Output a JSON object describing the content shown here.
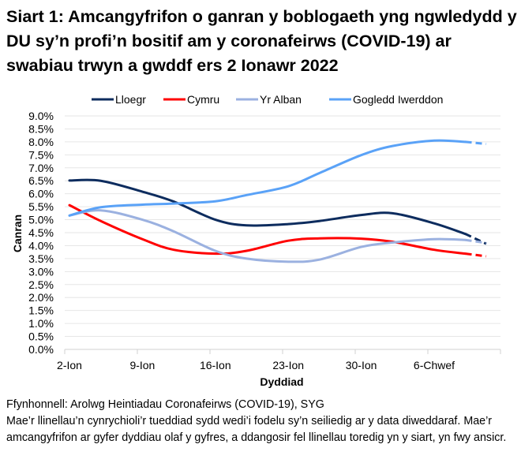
{
  "chart_data": {
    "type": "line",
    "title": "Siart 1: Amcangyfrifon o ganran y boblogaeth yng ngwledydd y DU sy’n profi’n bositif am y coronafeirws (COVID-19) ar swabiau trwyn a gwddf ers 2 Ionawr 2022",
    "xlabel": "Dyddiad",
    "ylabel": "Canran",
    "ylim": [
      0,
      9
    ],
    "y_ticks": [
      "0.0%",
      "0.5%",
      "1.0%",
      "1.5%",
      "2.0%",
      "2.5%",
      "3.0%",
      "3.5%",
      "4.0%",
      "4.5%",
      "5.0%",
      "5.5%",
      "6.0%",
      "6.5%",
      "7.0%",
      "7.5%",
      "8.0%",
      "8.5%",
      "9.0%"
    ],
    "x_tick_labels": [
      "2-Ion",
      "9-Ion",
      "16-Ion",
      "23-Ion",
      "30-Ion",
      "6-Chwef"
    ],
    "x_tick_dates": [
      "2022-01-02",
      "2022-01-09",
      "2022-01-16",
      "2022-01-23",
      "2022-01-30",
      "2022-02-06"
    ],
    "grid": true,
    "legend": "top",
    "x": [
      "2022-01-02",
      "2022-01-05",
      "2022-01-09",
      "2022-01-12",
      "2022-01-16",
      "2022-01-19",
      "2022-01-23",
      "2022-01-26",
      "2022-01-30",
      "2022-02-02",
      "2022-02-06",
      "2022-02-09",
      "2022-02-11"
    ],
    "dashed_from": "2022-02-09",
    "series": [
      {
        "name": "Lloegr",
        "color": "#0d2c5e",
        "values": [
          6.51,
          6.5,
          6.08,
          5.7,
          5.0,
          4.78,
          4.83,
          4.95,
          5.18,
          5.25,
          4.86,
          4.45,
          4.07
        ]
      },
      {
        "name": "Cymru",
        "color": "#ff0000",
        "values": [
          5.56,
          4.95,
          4.25,
          3.84,
          3.69,
          3.8,
          4.19,
          4.28,
          4.27,
          4.15,
          3.84,
          3.69,
          3.59
        ]
      },
      {
        "name": "Yr Alban",
        "color": "#9bb1e0",
        "values": [
          5.16,
          5.36,
          5.0,
          4.55,
          3.8,
          3.5,
          3.38,
          3.46,
          3.95,
          4.12,
          4.25,
          4.22,
          4.1
        ]
      },
      {
        "name": "Gogledd Iwerddon",
        "color": "#5aa2f7",
        "values": [
          5.16,
          5.48,
          5.58,
          5.62,
          5.71,
          5.95,
          6.29,
          6.8,
          7.49,
          7.84,
          8.05,
          8.0,
          7.92
        ]
      }
    ]
  },
  "footer": {
    "source": "Ffynhonnell: Arolwg Heintiadau Coronafeirws (COVID-19), SYG",
    "note": "Mae’r llinellau’n cynrychioli’r tueddiad sydd wedi’i fodelu sy’n seiliedig ar y data diweddaraf. Mae’r amcangyfrifon ar gyfer dyddiau olaf y gyfres, a ddangosir fel llinellau toredig yn y siart, yn fwy ansicr."
  }
}
